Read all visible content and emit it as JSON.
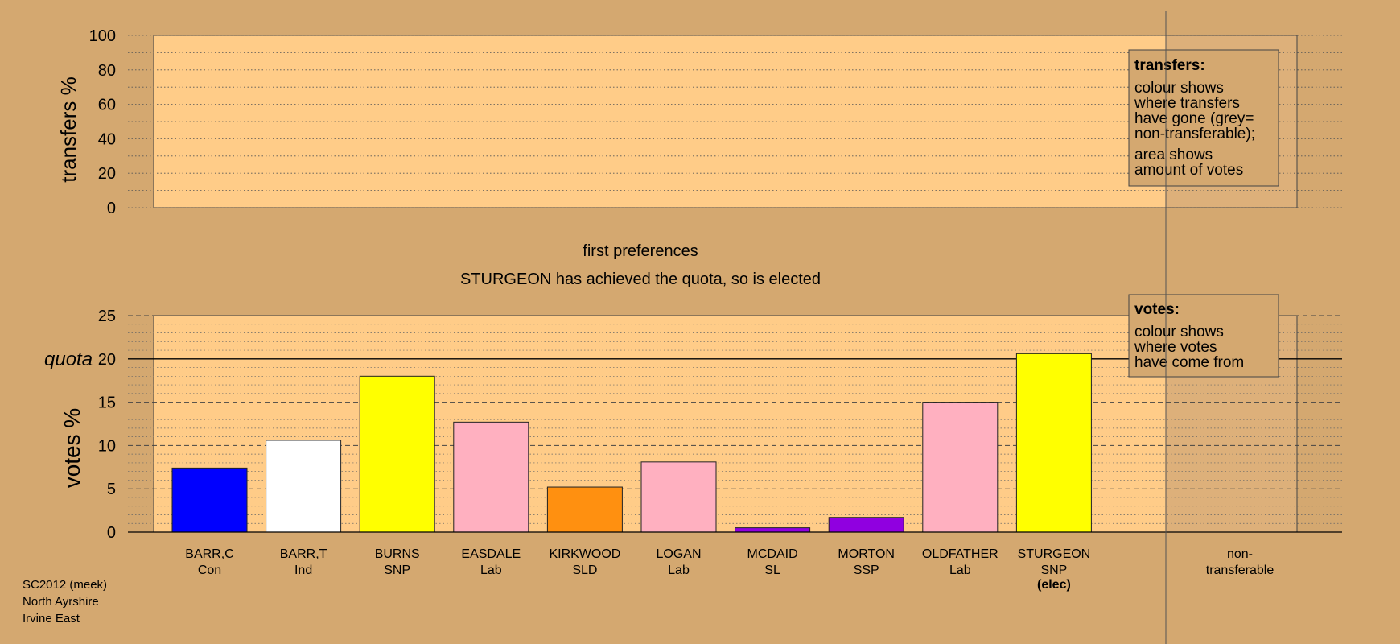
{
  "chart_data": {
    "type": "bar",
    "upper_panel": {
      "ylabel": "transfers %",
      "ylim": [
        0,
        100
      ],
      "yticks": [
        0,
        20,
        40,
        60,
        80,
        100
      ],
      "legend": {
        "title": "transfers:",
        "lines_a": [
          "colour shows",
          "where transfers",
          "have gone (grey=",
          "non-transferable);"
        ],
        "lines_b": [
          "area shows",
          "amount of votes"
        ],
        "placement": "top-right"
      }
    },
    "stage_title": "first preferences",
    "stage_message": "STURGEON has achieved the quota, so is elected",
    "lower_panel": {
      "ylabel": "votes %",
      "quota_label": "quota",
      "quota": 20,
      "ylim": [
        0,
        25
      ],
      "yticks": [
        0,
        5,
        10,
        15,
        20,
        25
      ],
      "legend": {
        "title": "votes:",
        "lines": [
          "colour shows",
          "where votes",
          "have come from"
        ],
        "placement": "top-right"
      }
    },
    "candidates": [
      {
        "name": "BARR,C",
        "party": "Con",
        "value": 7.4,
        "color": "#0000ff"
      },
      {
        "name": "BARR,T",
        "party": "Ind",
        "value": 10.6,
        "color": "#ffffff"
      },
      {
        "name": "BURNS",
        "party": "SNP",
        "value": 18.0,
        "color": "#ffff00"
      },
      {
        "name": "EASDALE",
        "party": "Lab",
        "value": 12.7,
        "color": "#ffb0c0"
      },
      {
        "name": "KIRKWOOD",
        "party": "SLD",
        "value": 5.2,
        "color": "#ff9010"
      },
      {
        "name": "LOGAN",
        "party": "Lab",
        "value": 8.1,
        "color": "#ffb0c0"
      },
      {
        "name": "MCDAID",
        "party": "SL",
        "value": 0.5,
        "color": "#9000e0"
      },
      {
        "name": "MORTON",
        "party": "SSP",
        "value": 1.7,
        "color": "#9000e0"
      },
      {
        "name": "OLDFATHER",
        "party": "Lab",
        "value": 15.0,
        "color": "#ffb0c0"
      },
      {
        "name": "STURGEON",
        "party": "SNP",
        "value": 20.6,
        "color": "#ffff00",
        "status": "(elec)"
      }
    ],
    "nontransferable_label": [
      "non-",
      "transferable"
    ],
    "footer": [
      "SC2012 (meek)",
      "North Ayrshire",
      "Irvine East"
    ]
  },
  "colors": {
    "background": "#d4a870",
    "panel": "#ffcc88",
    "nontransfer_shade": "#ddb07a"
  }
}
